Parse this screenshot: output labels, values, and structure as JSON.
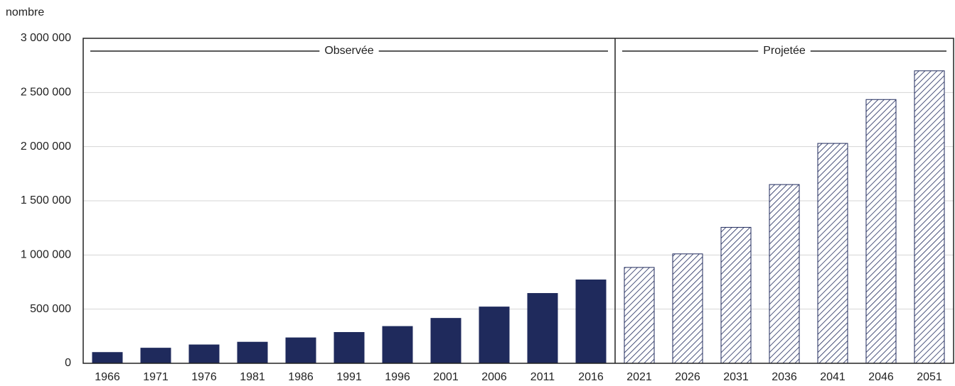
{
  "chart_data": {
    "type": "bar",
    "y_label": "nombre",
    "categories": [
      "1966",
      "1971",
      "1976",
      "1981",
      "1986",
      "1991",
      "1996",
      "2001",
      "2006",
      "2011",
      "2016",
      "2021",
      "2026",
      "2031",
      "2036",
      "2041",
      "2046",
      "2051"
    ],
    "series": [
      {
        "name": "Observée",
        "color": "#1f2a5c",
        "fill": "solid",
        "values": [
          100000,
          140000,
          170000,
          195000,
          235000,
          285000,
          340000,
          415000,
          520000,
          645000,
          770000,
          null,
          null,
          null,
          null,
          null,
          null,
          null
        ]
      },
      {
        "name": "Projetée",
        "color": "#1f2a5c",
        "fill": "hatch",
        "values": [
          null,
          null,
          null,
          null,
          null,
          null,
          null,
          null,
          null,
          null,
          null,
          885000,
          1010000,
          1255000,
          1650000,
          2030000,
          2435000,
          2700000
        ]
      }
    ],
    "ylim": [
      0,
      3000000
    ],
    "yticks": [
      0,
      {
        "value": 500000,
        "label": "500 000"
      },
      {
        "value": 1000000,
        "label": "1 000 000"
      },
      {
        "value": 1500000,
        "label": "1 500 000"
      },
      {
        "value": 2000000,
        "label": "2 000 000"
      },
      {
        "value": 2500000,
        "label": "2 500 000"
      },
      {
        "value": 3000000,
        "label": "3 000 000"
      }
    ],
    "grid": true
  }
}
